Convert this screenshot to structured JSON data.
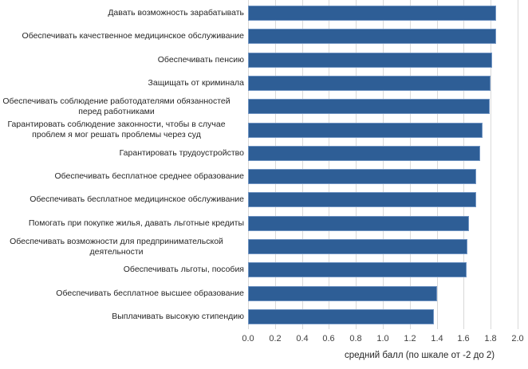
{
  "chart_data": {
    "type": "bar",
    "orientation": "horizontal",
    "title": "",
    "xlabel": "средний балл (по шкале от -2 до 2)",
    "ylabel": "",
    "xlim": [
      0.0,
      2.0
    ],
    "x_ticks": [
      "0.0",
      "0.2",
      "0.4",
      "0.6",
      "0.8",
      "1.0",
      "1.2",
      "1.4",
      "1.6",
      "1.8",
      "2.0"
    ],
    "grid": "vertical",
    "legend": "none",
    "bar_color": "#2e5e96",
    "categories": [
      "Давать возможность зарабатывать",
      "Обеспечивать качественное медицинское обслуживание",
      "Обеспечивать пенсию",
      "Защищать от криминала",
      "Обеспечивать соблюдение работодателями обязанностей перед работниками",
      "Гарантировать соблюдение законности, чтобы в случае проблем я мог решать проблемы через суд",
      "Гарантировать трудоустройство",
      "Обеспечивать бесплатное среднее образование",
      "Обеспечивать бесплатное медицинское обслуживание",
      "Помогать при покупке жилья, давать льготные кредиты",
      "Обеспечивать возможности для предпринимательской деятельности",
      "Обеспечивать льготы, пособия",
      "Обеспечивать бесплатное высшее образование",
      "Выплачивать высокую стипендию"
    ],
    "values": [
      1.84,
      1.84,
      1.81,
      1.8,
      1.79,
      1.74,
      1.72,
      1.69,
      1.69,
      1.64,
      1.63,
      1.62,
      1.4,
      1.38
    ]
  },
  "labels": [
    {
      "lines": [
        "Давать возможность зарабатывать"
      ]
    },
    {
      "lines": [
        "Обеспечивать качественное медицинское обслуживание"
      ]
    },
    {
      "lines": [
        "Обеспечивать пенсию"
      ]
    },
    {
      "lines": [
        "Защищать от криминала"
      ]
    },
    {
      "lines": [
        "Обеспечивать соблюдение работодателями обязанностей",
        "перед работниками"
      ]
    },
    {
      "lines": [
        "Гарантировать соблюдение законности, чтобы в случае",
        "проблем я мог решать проблемы через суд"
      ]
    },
    {
      "lines": [
        "Гарантировать трудоустройство"
      ]
    },
    {
      "lines": [
        "Обеспечивать бесплатное среднее образование"
      ]
    },
    {
      "lines": [
        "Обеспечивать бесплатное медицинское обслуживание"
      ]
    },
    {
      "lines": [
        "Помогать при покупке жилья, давать льготные кредиты"
      ]
    },
    {
      "lines": [
        "Обеспечивать возможности для предпринимательской",
        "деятельности"
      ]
    },
    {
      "lines": [
        "Обеспечивать льготы, пособия"
      ]
    },
    {
      "lines": [
        "Обеспечивать бесплатное высшее образование"
      ]
    },
    {
      "lines": [
        "Выплачивать высокую стипендию"
      ]
    }
  ]
}
